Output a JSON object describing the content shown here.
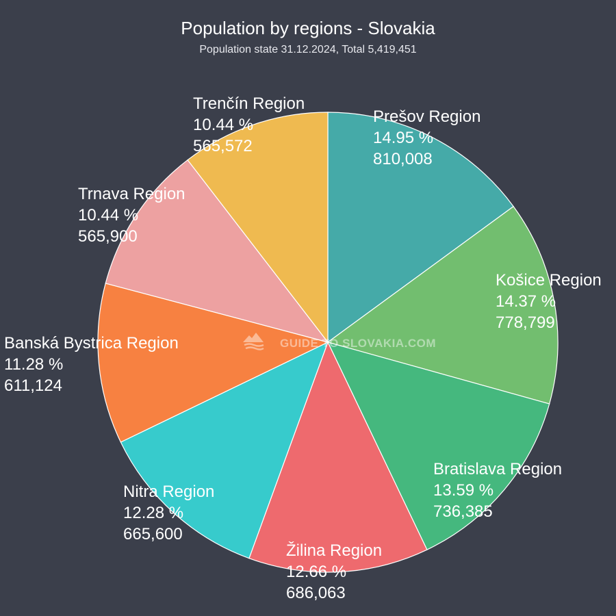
{
  "chart_data": {
    "type": "pie",
    "title": "Population by regions - Slovakia",
    "subtitle": "Population state 31.12.2024, Total 5,419,451",
    "start_angle_deg": 0,
    "direction": "clockwise",
    "slices": [
      {
        "label": "Prešov Region",
        "percent_label": "14.95 %",
        "value": 810008,
        "value_label": "810,008",
        "color": "#45aaa8"
      },
      {
        "label": "Košice Region",
        "percent_label": "14.37 %",
        "value": 778799,
        "value_label": "778,799",
        "color": "#72be6f"
      },
      {
        "label": "Bratislava Region",
        "percent_label": "13.59 %",
        "value": 736385,
        "value_label": "736,385",
        "color": "#45b87e"
      },
      {
        "label": "Žilina Region",
        "percent_label": "12.66 %",
        "value": 686063,
        "value_label": "686,063",
        "color": "#ee6a6e"
      },
      {
        "label": "Nitra Region",
        "percent_label": "12.28 %",
        "value": 665600,
        "value_label": "665,600",
        "color": "#37cbcc"
      },
      {
        "label": "Banská Bystrica Region",
        "percent_label": "11.28 %",
        "value": 611124,
        "value_label": "611,124",
        "color": "#f78141"
      },
      {
        "label": "Trnava Region",
        "percent_label": "10.44 %",
        "value": 565900,
        "value_label": "565,900",
        "color": "#eda1a1"
      },
      {
        "label": "Trenčín Region",
        "percent_label": "10.44 %",
        "value": 565572,
        "value_label": "565,572",
        "color": "#efba50"
      }
    ]
  },
  "watermark": {
    "text": "GUIDE TO SLOVAKIA.COM",
    "icon": "mountain-wave-icon"
  }
}
